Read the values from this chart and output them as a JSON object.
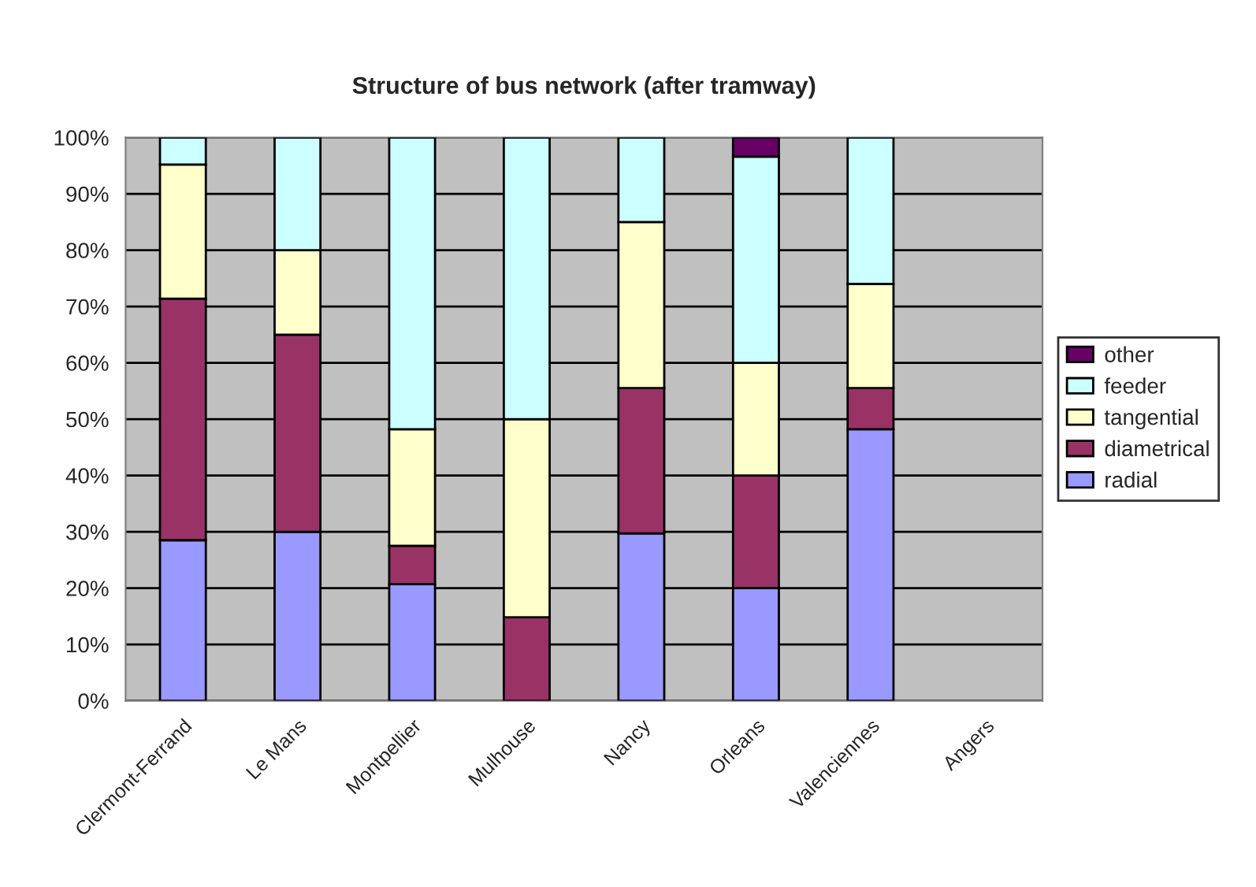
{
  "chart_data": {
    "type": "bar",
    "title": "Structure of bus network (after tramway)",
    "stacked": true,
    "categories": [
      "Clermont-Ferrand",
      "Le Mans",
      "Montpellier",
      "Mulhouse",
      "Nancy",
      "Orleans",
      "Valenciennes",
      "Angers"
    ],
    "series": [
      {
        "name": "radial",
        "color": "#9999ff",
        "values": [
          28.5,
          30,
          20.7,
          0,
          29.7,
          20,
          48.2,
          null
        ]
      },
      {
        "name": "diametrical",
        "color": "#993366",
        "values": [
          42.9,
          35,
          6.8,
          14.8,
          25.8,
          20,
          7.3,
          null
        ]
      },
      {
        "name": "tangential",
        "color": "#ffffcc",
        "values": [
          23.8,
          15,
          20.7,
          35.2,
          29.5,
          20,
          18.5,
          null
        ]
      },
      {
        "name": "feeder",
        "color": "#ccffff",
        "values": [
          4.8,
          20,
          51.8,
          50,
          15,
          36.6,
          26,
          null
        ]
      },
      {
        "name": "other",
        "color": "#660066",
        "values": [
          0,
          0,
          0,
          0,
          0,
          3.4,
          0,
          null
        ]
      }
    ],
    "ylim": [
      0,
      100
    ],
    "yticks": [
      {
        "value": 0,
        "label": "0%"
      },
      {
        "value": 10,
        "label": "10%"
      },
      {
        "value": 20,
        "label": "20%"
      },
      {
        "value": 30,
        "label": "30%"
      },
      {
        "value": 40,
        "label": "40%"
      },
      {
        "value": 50,
        "label": "50%"
      },
      {
        "value": 60,
        "label": "60%"
      },
      {
        "value": 70,
        "label": "70%"
      },
      {
        "value": 80,
        "label": "80%"
      },
      {
        "value": 90,
        "label": "90%"
      },
      {
        "value": 100,
        "label": "100%"
      }
    ],
    "grid": "y",
    "legend": "right"
  }
}
